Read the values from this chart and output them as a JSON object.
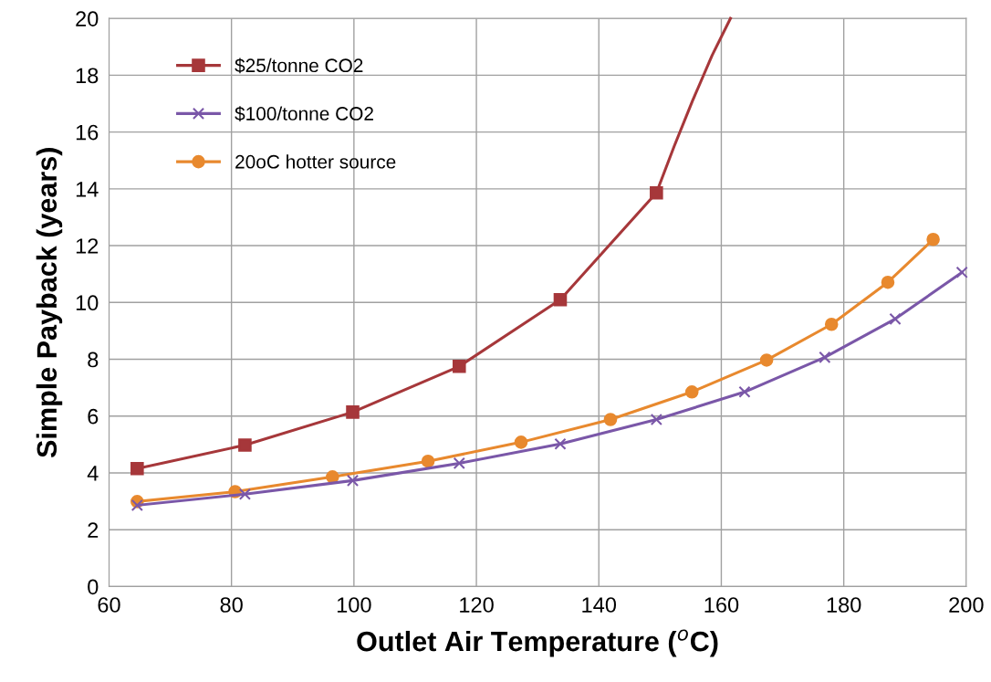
{
  "chart_data": {
    "type": "line",
    "xlabel": "Outlet Air Temperature ($^{o}$C)",
    "ylabel": "Simple Payback (years)",
    "xlim": [
      60,
      200
    ],
    "xticks": [
      60,
      80,
      100,
      120,
      140,
      160,
      180,
      200
    ],
    "ylim": [
      0,
      20
    ],
    "yticks": [
      0,
      2,
      4,
      6,
      8,
      10,
      12,
      14,
      16,
      18,
      20
    ],
    "grid": true,
    "legend": "top left",
    "line_style": "solid",
    "series": [
      {
        "name": "$25/tonne CO2",
        "color": "#a6373a",
        "marker": "square",
        "x": [
          64.6,
          82.2,
          99.8,
          117.2,
          133.7,
          149.4
        ],
        "values": [
          4.15,
          4.98,
          6.14,
          7.75,
          10.1,
          13.86
        ]
      },
      {
        "name": "$100/tonne CO2",
        "color": "#7a57a8",
        "marker": "cross",
        "x": [
          64.6,
          82.2,
          99.8,
          117.2,
          133.7,
          149.4,
          163.8,
          176.9,
          188.4,
          199.3
        ],
        "values": [
          2.86,
          3.25,
          3.73,
          4.34,
          5.02,
          5.88,
          6.85,
          8.07,
          9.42,
          11.06
        ]
      },
      {
        "name": "20oC hotter source",
        "color": "#e8892e",
        "marker": "circle",
        "x": [
          64.6,
          80.6,
          96.5,
          112.1,
          127.3,
          141.9,
          155.2,
          167.4,
          178.0,
          187.2,
          194.6
        ],
        "values": [
          2.99,
          3.34,
          3.86,
          4.41,
          5.08,
          5.88,
          6.85,
          7.97,
          9.23,
          10.71,
          12.22
        ]
      },
      {
        "color": "#a6373a",
        "marker": "none",
        "x": [
          149.4,
          152.3,
          155.3,
          158.5,
          161.5
        ],
        "values": [
          13.86,
          15.5,
          17.1,
          18.7,
          20
        ]
      }
    ]
  }
}
